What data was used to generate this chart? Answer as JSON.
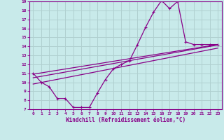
{
  "xlabel": "Windchill (Refroidissement éolien,°C)",
  "xlim": [
    -0.5,
    23.5
  ],
  "ylim": [
    7,
    19
  ],
  "yticks": [
    7,
    8,
    9,
    10,
    11,
    12,
    13,
    14,
    15,
    16,
    17,
    18,
    19
  ],
  "xticks": [
    0,
    1,
    2,
    3,
    4,
    5,
    6,
    7,
    8,
    9,
    10,
    11,
    12,
    13,
    14,
    15,
    16,
    17,
    18,
    19,
    20,
    21,
    22,
    23
  ],
  "bg_color": "#c8eaea",
  "grid_color": "#b0d0d0",
  "line_color": "#880088",
  "series1_x": [
    0,
    1,
    2,
    3,
    4,
    5,
    6,
    7,
    8,
    9,
    10,
    11,
    12,
    13,
    14,
    15,
    16,
    17,
    18,
    19,
    20,
    21,
    22,
    23
  ],
  "series1_y": [
    11.0,
    10.0,
    9.5,
    8.2,
    8.2,
    7.2,
    7.2,
    7.2,
    8.8,
    10.3,
    11.5,
    12.0,
    12.4,
    14.2,
    16.1,
    17.8,
    19.1,
    18.2,
    19.0,
    14.5,
    14.2,
    14.2,
    14.2,
    14.2
  ],
  "series2_x": [
    0,
    23
  ],
  "series2_y": [
    10.9,
    14.2
  ],
  "series3_x": [
    0,
    23
  ],
  "series3_y": [
    10.5,
    14.15
  ],
  "series4_x": [
    0,
    23
  ],
  "series4_y": [
    9.8,
    13.8
  ]
}
